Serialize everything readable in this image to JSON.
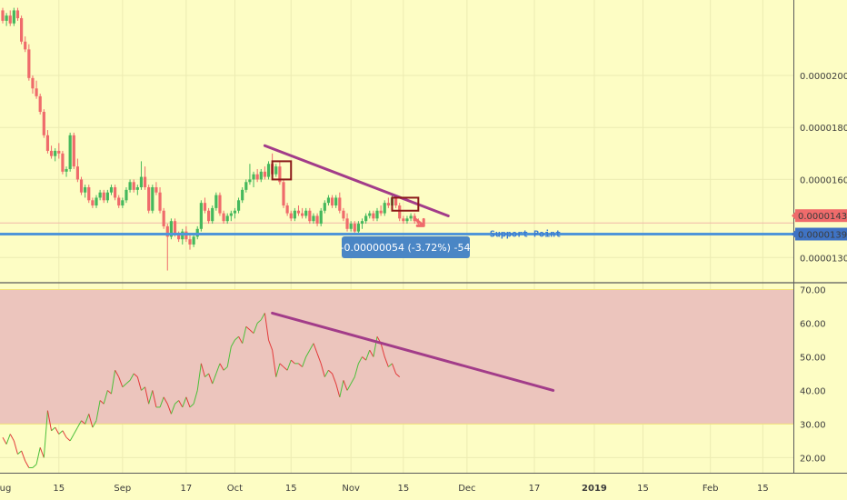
{
  "chart_data": [
    {
      "type": "candlestick",
      "panel": "price",
      "y_scale_labels": [
        "0.00002000",
        "0.00001800",
        "0.00001600",
        "0.00001300"
      ],
      "y_scale_values": [
        2e-05,
        1.8e-05,
        1.6e-05,
        1.3e-05
      ],
      "ylim": [
        1.21e-05,
        2.29e-05
      ],
      "price_badges": [
        {
          "label": "0.00001433",
          "value": 1.433e-05,
          "color": "#ef6b6b"
        },
        {
          "label": "0.00001390",
          "value": 1.39e-05,
          "color": "#3f73c4"
        }
      ],
      "support_line": {
        "value": 1.39e-05,
        "label": "Support Point",
        "color": "#4f95d8"
      },
      "trendline": {
        "from": {
          "day": 70,
          "value": 1.73e-05
        },
        "to": {
          "day": 119,
          "value": 1.46e-05
        },
        "color": "#a23c89"
      },
      "highlight_boxes": [
        {
          "day_start": 72,
          "day_end": 77,
          "low": 1.6e-05,
          "high": 1.67e-05
        },
        {
          "day_start": 104,
          "day_end": 111,
          "low": 1.48e-05,
          "high": 1.53e-05
        }
      ],
      "measure_label": "-0.00000054 (-3.72%) -54",
      "candles_ohlc": [
        [
          2.25e-05,
          2.26e-05,
          2.2e-05,
          2.21e-05
        ],
        [
          2.21e-05,
          2.24e-05,
          2.19e-05,
          2.23e-05
        ],
        [
          2.23e-05,
          2.25e-05,
          2.19e-05,
          2.2e-05
        ],
        [
          2.2e-05,
          2.26e-05,
          2.19e-05,
          2.25e-05
        ],
        [
          2.25e-05,
          2.26e-05,
          2.21e-05,
          2.22e-05
        ],
        [
          2.22e-05,
          2.23e-05,
          2.12e-05,
          2.13e-05
        ],
        [
          2.13e-05,
          2.15e-05,
          2.09e-05,
          2.1e-05
        ],
        [
          2.1e-05,
          2.12e-05,
          1.98e-05,
          1.99e-05
        ],
        [
          1.99e-05,
          2e-05,
          1.93e-05,
          1.95e-05
        ],
        [
          1.95e-05,
          1.98e-05,
          1.91e-05,
          1.92e-05
        ],
        [
          1.92e-05,
          1.93e-05,
          1.85e-05,
          1.86e-05
        ],
        [
          1.86e-05,
          1.87e-05,
          1.76e-05,
          1.77e-05
        ],
        [
          1.77e-05,
          1.79e-05,
          1.7e-05,
          1.71e-05
        ],
        [
          1.71e-05,
          1.73e-05,
          1.68e-05,
          1.69e-05
        ],
        [
          1.69e-05,
          1.72e-05,
          1.67e-05,
          1.71e-05
        ],
        [
          1.71e-05,
          1.74e-05,
          1.68e-05,
          1.7e-05
        ],
        [
          1.7e-05,
          1.71e-05,
          1.62e-05,
          1.63e-05
        ],
        [
          1.63e-05,
          1.65e-05,
          1.61e-05,
          1.64e-05
        ],
        [
          1.64e-05,
          1.78e-05,
          1.63e-05,
          1.77e-05
        ],
        [
          1.77e-05,
          1.78e-05,
          1.64e-05,
          1.65e-05
        ],
        [
          1.65e-05,
          1.68e-05,
          1.59e-05,
          1.6e-05
        ],
        [
          1.6e-05,
          1.61e-05,
          1.54e-05,
          1.55e-05
        ],
        [
          1.55e-05,
          1.58e-05,
          1.53e-05,
          1.57e-05
        ],
        [
          1.57e-05,
          1.58e-05,
          1.51e-05,
          1.52e-05
        ],
        [
          1.52e-05,
          1.53e-05,
          1.49e-05,
          1.5e-05
        ],
        [
          1.5e-05,
          1.54e-05,
          1.49e-05,
          1.53e-05
        ],
        [
          1.53e-05,
          1.56e-05,
          1.52e-05,
          1.55e-05
        ],
        [
          1.55e-05,
          1.56e-05,
          1.51e-05,
          1.52e-05
        ],
        [
          1.52e-05,
          1.56e-05,
          1.51e-05,
          1.55e-05
        ],
        [
          1.55e-05,
          1.58e-05,
          1.54e-05,
          1.57e-05
        ],
        [
          1.57e-05,
          1.58e-05,
          1.52e-05,
          1.53e-05
        ],
        [
          1.53e-05,
          1.54e-05,
          1.49e-05,
          1.5e-05
        ],
        [
          1.5e-05,
          1.53e-05,
          1.49e-05,
          1.52e-05
        ],
        [
          1.52e-05,
          1.57e-05,
          1.51e-05,
          1.56e-05
        ],
        [
          1.56e-05,
          1.6e-05,
          1.55e-05,
          1.59e-05
        ],
        [
          1.59e-05,
          1.6e-05,
          1.55e-05,
          1.56e-05
        ],
        [
          1.56e-05,
          1.58e-05,
          1.54e-05,
          1.57e-05
        ],
        [
          1.57e-05,
          1.67e-05,
          1.56e-05,
          1.61e-05
        ],
        [
          1.61e-05,
          1.65e-05,
          1.56e-05,
          1.57e-05
        ],
        [
          1.57e-05,
          1.58e-05,
          1.47e-05,
          1.48e-05
        ],
        [
          1.48e-05,
          1.58e-05,
          1.47e-05,
          1.57e-05
        ],
        [
          1.57e-05,
          1.59e-05,
          1.54e-05,
          1.55e-05
        ],
        [
          1.55e-05,
          1.57e-05,
          1.47e-05,
          1.48e-05
        ],
        [
          1.48e-05,
          1.49e-05,
          1.41e-05,
          1.42e-05
        ],
        [
          1.42e-05,
          1.43e-05,
          1.25e-05,
          1.38e-05
        ],
        [
          1.38e-05,
          1.45e-05,
          1.37e-05,
          1.44e-05
        ],
        [
          1.44e-05,
          1.45e-05,
          1.38e-05,
          1.39e-05
        ],
        [
          1.39e-05,
          1.4e-05,
          1.36e-05,
          1.37e-05
        ],
        [
          1.37e-05,
          1.41e-05,
          1.35e-05,
          1.4e-05
        ],
        [
          1.4e-05,
          1.42e-05,
          1.36e-05,
          1.37e-05
        ],
        [
          1.37e-05,
          1.39e-05,
          1.33e-05,
          1.35e-05
        ],
        [
          1.35e-05,
          1.39e-05,
          1.34e-05,
          1.38e-05
        ],
        [
          1.38e-05,
          1.42e-05,
          1.37e-05,
          1.41e-05
        ],
        [
          1.41e-05,
          1.52e-05,
          1.4e-05,
          1.51e-05
        ],
        [
          1.51e-05,
          1.53e-05,
          1.47e-05,
          1.48e-05
        ],
        [
          1.48e-05,
          1.49e-05,
          1.43e-05,
          1.44e-05
        ],
        [
          1.44e-05,
          1.5e-05,
          1.43e-05,
          1.49e-05
        ],
        [
          1.49e-05,
          1.55e-05,
          1.48e-05,
          1.54e-05
        ],
        [
          1.54e-05,
          1.55e-05,
          1.46e-05,
          1.47e-05
        ],
        [
          1.47e-05,
          1.48e-05,
          1.43e-05,
          1.44e-05
        ],
        [
          1.44e-05,
          1.47e-05,
          1.43e-05,
          1.46e-05
        ],
        [
          1.46e-05,
          1.48e-05,
          1.44e-05,
          1.47e-05
        ],
        [
          1.47e-05,
          1.49e-05,
          1.45e-05,
          1.48e-05
        ],
        [
          1.48e-05,
          1.53e-05,
          1.47e-05,
          1.52e-05
        ],
        [
          1.52e-05,
          1.57e-05,
          1.51e-05,
          1.56e-05
        ],
        [
          1.56e-05,
          1.6e-05,
          1.55e-05,
          1.59e-05
        ],
        [
          1.59e-05,
          1.66e-05,
          1.58e-05,
          1.6e-05
        ],
        [
          1.6e-05,
          1.63e-05,
          1.57e-05,
          1.62e-05
        ],
        [
          1.62e-05,
          1.64e-05,
          1.59e-05,
          1.6e-05
        ],
        [
          1.6e-05,
          1.64e-05,
          1.59e-05,
          1.63e-05
        ],
        [
          1.63e-05,
          1.65e-05,
          1.6e-05,
          1.61e-05
        ],
        [
          1.61e-05,
          1.67e-05,
          1.6e-05,
          1.66e-05
        ],
        [
          1.66e-05,
          1.7e-05,
          1.61e-05,
          1.62e-05
        ],
        [
          1.62e-05,
          1.66e-05,
          1.61e-05,
          1.65e-05
        ],
        [
          1.65e-05,
          1.67e-05,
          1.58e-05,
          1.59e-05
        ],
        [
          1.59e-05,
          1.6e-05,
          1.49e-05,
          1.5e-05
        ],
        [
          1.5e-05,
          1.51e-05,
          1.46e-05,
          1.47e-05
        ],
        [
          1.47e-05,
          1.48e-05,
          1.44e-05,
          1.45e-05
        ],
        [
          1.45e-05,
          1.49e-05,
          1.44e-05,
          1.48e-05
        ],
        [
          1.48e-05,
          1.5e-05,
          1.46e-05,
          1.47e-05
        ],
        [
          1.47e-05,
          1.49e-05,
          1.45e-05,
          1.46e-05
        ],
        [
          1.46e-05,
          1.49e-05,
          1.45e-05,
          1.48e-05
        ],
        [
          1.48e-05,
          1.49e-05,
          1.43e-05,
          1.44e-05
        ],
        [
          1.44e-05,
          1.47e-05,
          1.43e-05,
          1.46e-05
        ],
        [
          1.46e-05,
          1.47e-05,
          1.42e-05,
          1.43e-05
        ],
        [
          1.43e-05,
          1.49e-05,
          1.42e-05,
          1.48e-05
        ],
        [
          1.48e-05,
          1.52e-05,
          1.47e-05,
          1.51e-05
        ],
        [
          1.51e-05,
          1.54e-05,
          1.5e-05,
          1.53e-05
        ],
        [
          1.53e-05,
          1.54e-05,
          1.49e-05,
          1.5e-05
        ],
        [
          1.5e-05,
          1.54e-05,
          1.49e-05,
          1.53e-05
        ],
        [
          1.53e-05,
          1.55e-05,
          1.47e-05,
          1.48e-05
        ],
        [
          1.48e-05,
          1.49e-05,
          1.44e-05,
          1.45e-05
        ],
        [
          1.45e-05,
          1.47e-05,
          1.4e-05,
          1.41e-05
        ],
        [
          1.41e-05,
          1.44e-05,
          1.4e-05,
          1.43e-05
        ],
        [
          1.43e-05,
          1.44e-05,
          1.39e-05,
          1.4e-05
        ],
        [
          1.4e-05,
          1.44e-05,
          1.39e-05,
          1.43e-05
        ],
        [
          1.43e-05,
          1.45e-05,
          1.41e-05,
          1.44e-05
        ],
        [
          1.44e-05,
          1.47e-05,
          1.43e-05,
          1.46e-05
        ],
        [
          1.46e-05,
          1.48e-05,
          1.45e-05,
          1.47e-05
        ],
        [
          1.47e-05,
          1.48e-05,
          1.44e-05,
          1.45e-05
        ],
        [
          1.45e-05,
          1.49e-05,
          1.44e-05,
          1.48e-05
        ],
        [
          1.48e-05,
          1.5e-05,
          1.46e-05,
          1.47e-05
        ],
        [
          1.47e-05,
          1.52e-05,
          1.46e-05,
          1.51e-05
        ],
        [
          1.51e-05,
          1.53e-05,
          1.49e-05,
          1.5e-05
        ],
        [
          1.5e-05,
          1.54e-05,
          1.49e-05,
          1.53e-05
        ],
        [
          1.53e-05,
          1.54e-05,
          1.49e-05,
          1.5e-05
        ],
        [
          1.5e-05,
          1.51e-05,
          1.44e-05,
          1.45e-05
        ],
        [
          1.45e-05,
          1.46e-05,
          1.43e-05,
          1.44e-05
        ],
        [
          1.44e-05,
          1.46e-05,
          1.43e-05,
          1.45e-05
        ],
        [
          1.45e-05,
          1.47e-05,
          1.44e-05,
          1.46e-05
        ],
        [
          1.46e-05,
          1.47e-05,
          1.43e-05,
          1.44e-05
        ],
        [
          1.44e-05,
          1.45e-05,
          1.42e-05,
          1.43e-05
        ]
      ]
    },
    {
      "type": "line",
      "panel": "oscillator",
      "y_scale_labels": [
        "70.00",
        "60.00",
        "50.00",
        "40.00",
        "30.00",
        "20.00"
      ],
      "y_scale_values": [
        70,
        60,
        50,
        40,
        30,
        20
      ],
      "ylim": [
        15.5,
        71.5
      ],
      "band": [
        30,
        70
      ],
      "up_color": "#4cbf3a",
      "down_color": "#e23a3a",
      "values": [
        26,
        24,
        27,
        25,
        21,
        22,
        19,
        17,
        17,
        18,
        23,
        20,
        34,
        28,
        29,
        27,
        28,
        26,
        25,
        27,
        29,
        31,
        30,
        33,
        29,
        31,
        37,
        36,
        40,
        39,
        46,
        44,
        41,
        42,
        43,
        45,
        44,
        40,
        41,
        36,
        40,
        35,
        35,
        38,
        36,
        33,
        36,
        37,
        35,
        38,
        35,
        36,
        40,
        48,
        44,
        45,
        42,
        45,
        48,
        46,
        47,
        53,
        55,
        56,
        54,
        59,
        58,
        57,
        60,
        61,
        63,
        55,
        52,
        44,
        48,
        47,
        46,
        49,
        48,
        48,
        47,
        50,
        52,
        54,
        51,
        48,
        44,
        46,
        45,
        42,
        38,
        43,
        40,
        42,
        44,
        48,
        50,
        49,
        52,
        50,
        56,
        54,
        50,
        47,
        48,
        45,
        44
      ],
      "trendline": {
        "from": {
          "day": 72,
          "value": 63
        },
        "to": {
          "day": 147,
          "value": 40
        },
        "color": "#a23c89"
      }
    }
  ],
  "x_axis": {
    "labels": [
      "ug",
      "15",
      "Sep",
      "17",
      "Oct",
      "15",
      "Nov",
      "15",
      "Dec",
      "17",
      "2019",
      "15",
      "Feb",
      "15"
    ],
    "label_days": [
      -1,
      15,
      32,
      49,
      62,
      77,
      93,
      107,
      124,
      142,
      158,
      171,
      189,
      203
    ],
    "bold_indices": [
      10
    ]
  },
  "colors": {
    "background": "#fdfdc4",
    "bull": "#45b85c",
    "bear": "#ef6b6b",
    "band_fill": "#ecc5bd"
  }
}
